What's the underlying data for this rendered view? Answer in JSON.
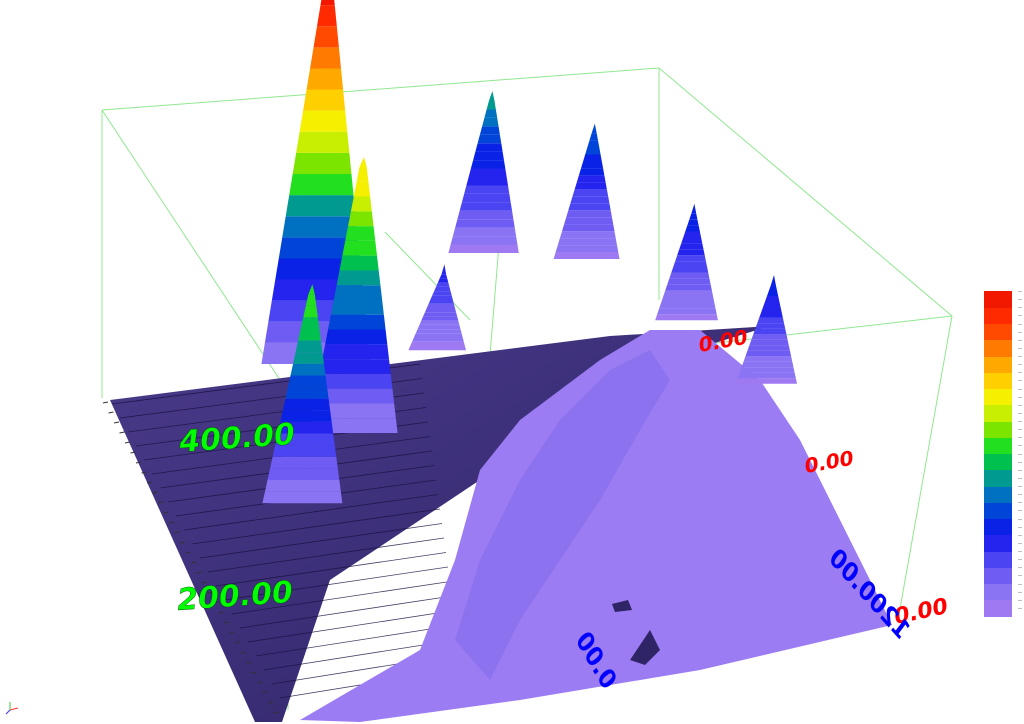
{
  "chart_data": {
    "type": "surface-3d",
    "x_ticks": [
      {
        "label": "0.00",
        "color": "#0000ff"
      },
      {
        "label": "1200.00",
        "color": "#0000ff"
      }
    ],
    "y_ticks": [
      {
        "label": "200.00",
        "color": "#00ff00"
      },
      {
        "label": "400.00",
        "color": "#00ff00"
      }
    ],
    "z_ticks": [
      {
        "label": "0.00",
        "color": "#ff0000"
      },
      {
        "label": "0.00",
        "color": "#ff0000"
      },
      {
        "label": "0.00",
        "color": "#ff0000"
      }
    ],
    "peaks": [
      {
        "x": 150,
        "y": 380,
        "z": 1.0
      },
      {
        "x": 200,
        "y": 300,
        "z": 0.7
      },
      {
        "x": 80,
        "y": 230,
        "z": 0.55
      },
      {
        "x": 500,
        "y": 480,
        "z": 0.4
      },
      {
        "x": 700,
        "y": 460,
        "z": 0.33
      },
      {
        "x": 880,
        "y": 380,
        "z": 0.28
      },
      {
        "x": 1020,
        "y": 300,
        "z": 0.26
      },
      {
        "x": 380,
        "y": 380,
        "z": 0.2
      }
    ],
    "colormap": [
      "#9e79f2",
      "#8a74f4",
      "#6f5cf3",
      "#4a44f2",
      "#2424ee",
      "#0a22e6",
      "#0044d8",
      "#0070c0",
      "#009a90",
      "#00c050",
      "#22e020",
      "#7be500",
      "#c8ef00",
      "#f5f000",
      "#ffd000",
      "#ffa800",
      "#ff7a00",
      "#ff4a00",
      "#ff2a00",
      "#f21800"
    ],
    "grid": false
  }
}
